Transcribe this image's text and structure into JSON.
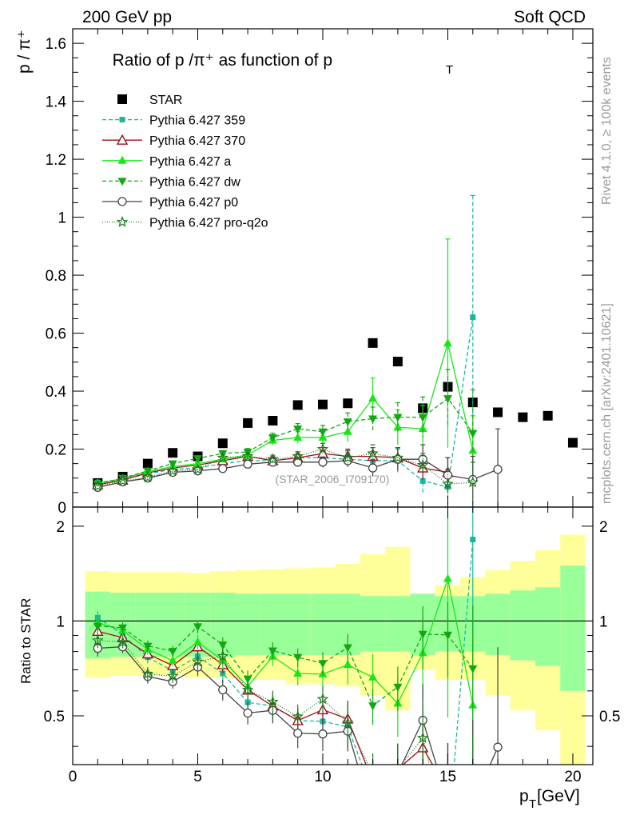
{
  "header": {
    "left": "200 GeV pp",
    "right": "Soft QCD"
  },
  "side_labels": {
    "rivet": "Rivet 4.1.0, ≥ 100k events",
    "mcplots": "mcplots.cern.ch [arXiv:2401.10621]"
  },
  "chart_data": {
    "type": "scatter",
    "title": "Ratio of p /π⁺ as function of p",
    "title_sub": "T",
    "ylabel": "p / π⁺",
    "ylabel_ratio": "Ratio to STAR",
    "xlabel": "p",
    "xlabel_sub": "T",
    "xlabel_unit": " [GeV]",
    "analysis_id": "(STAR_2006_I709170)",
    "xlim": [
      0,
      20.8
    ],
    "ylim": [
      0,
      1.65
    ],
    "ratio_ylim": [
      0.35,
      2.3
    ],
    "x_ticks": [
      0,
      5,
      10,
      15,
      20
    ],
    "x_tick_labels": [
      "0",
      "5",
      "10",
      "15",
      "20"
    ],
    "y_ticks": [
      0,
      0.2,
      0.4,
      0.6,
      0.8,
      1,
      1.2,
      1.4,
      1.6
    ],
    "y_tick_labels": [
      "0",
      "0.2",
      "0.4",
      "0.6",
      "0.8",
      "1",
      "1.2",
      "1.4",
      "1.6"
    ],
    "ratio_ticks": [
      0.5,
      1,
      2
    ],
    "ratio_tick_labels": [
      "0.5",
      "1",
      "2"
    ],
    "data": {
      "name": "STAR",
      "x": [
        1,
        2,
        3,
        4,
        5,
        6,
        7,
        8,
        9,
        10,
        11,
        12,
        13,
        14,
        15,
        16,
        17,
        18,
        19,
        20
      ],
      "y": [
        0.083,
        0.105,
        0.15,
        0.187,
        0.175,
        0.22,
        0.29,
        0.298,
        0.352,
        0.354,
        0.358,
        0.566,
        0.502,
        0.341,
        0.415,
        0.361,
        0.327,
        0.31,
        0.315,
        0.222
      ]
    },
    "bands": {
      "edges": [
        0.5,
        1.5,
        2.5,
        3.5,
        4.5,
        5.5,
        6.5,
        7.5,
        8.5,
        9.5,
        10.5,
        11.5,
        12.5,
        13.5,
        14.5,
        15.5,
        16.5,
        17.5,
        18.5,
        19.5,
        20.5
      ],
      "stat_lo": [
        0.76,
        0.77,
        0.77,
        0.77,
        0.77,
        0.77,
        0.78,
        0.78,
        0.78,
        0.78,
        0.78,
        0.8,
        0.8,
        0.78,
        0.8,
        0.8,
        0.78,
        0.75,
        0.72,
        0.6
      ],
      "stat_hi": [
        1.24,
        1.23,
        1.23,
        1.23,
        1.23,
        1.23,
        1.22,
        1.22,
        1.22,
        1.22,
        1.22,
        1.2,
        1.2,
        1.22,
        1.2,
        1.2,
        1.22,
        1.25,
        1.28,
        1.5
      ],
      "tot_lo": [
        0.66,
        0.67,
        0.67,
        0.67,
        0.66,
        0.66,
        0.65,
        0.65,
        0.63,
        0.63,
        0.62,
        0.58,
        0.52,
        0.7,
        0.65,
        0.65,
        0.58,
        0.52,
        0.45,
        0.1
      ],
      "tot_hi": [
        1.44,
        1.43,
        1.43,
        1.43,
        1.42,
        1.44,
        1.45,
        1.46,
        1.47,
        1.48,
        1.52,
        1.63,
        1.72,
        1.22,
        1.3,
        1.38,
        1.45,
        1.55,
        1.68,
        1.88
      ]
    },
    "series": [
      {
        "name": "Pythia 6.427 359",
        "color": "#16b89f",
        "dash": "5,3",
        "marker": "square-small",
        "x": [
          1,
          2,
          3,
          4,
          5,
          6,
          7,
          8,
          9,
          10,
          11,
          12,
          13,
          14,
          15,
          16
        ],
        "y": [
          0.085,
          0.095,
          0.115,
          0.13,
          0.135,
          0.15,
          0.16,
          0.16,
          0.17,
          0.17,
          0.165,
          0.16,
          0.16,
          0.09,
          0.07,
          0.655
        ],
        "err": [
          0.004,
          0.004,
          0.005,
          0.006,
          0.008,
          0.01,
          0.012,
          0.014,
          0.016,
          0.02,
          0.025,
          0.03,
          0.04,
          0.04,
          0.06,
          0.42
        ]
      },
      {
        "name": "Pythia 6.427 370",
        "color": "#a00d16",
        "dash": "",
        "marker": "triangle-open",
        "x": [
          1,
          2,
          3,
          4,
          5,
          6,
          7,
          8,
          9,
          10,
          11,
          12,
          13,
          14,
          15
        ],
        "y": [
          0.077,
          0.093,
          0.118,
          0.135,
          0.145,
          0.16,
          0.175,
          0.16,
          0.17,
          0.185,
          0.175,
          0.175,
          0.17,
          0.135,
          0.12
        ],
        "err": [
          0.004,
          0.004,
          0.005,
          0.006,
          0.008,
          0.01,
          0.012,
          0.014,
          0.016,
          0.02,
          0.025,
          0.03,
          0.035,
          0.04,
          0.05
        ]
      },
      {
        "name": "Pythia 6.427 a",
        "color": "#15e815",
        "dash": "",
        "marker": "triangle-filled",
        "x": [
          1,
          2,
          3,
          4,
          5,
          6,
          7,
          8,
          9,
          10,
          11,
          12,
          13,
          14,
          15,
          16
        ],
        "y": [
          0.082,
          0.098,
          0.122,
          0.14,
          0.15,
          0.165,
          0.18,
          0.23,
          0.24,
          0.24,
          0.26,
          0.375,
          0.275,
          0.27,
          0.565,
          0.195
        ],
        "err": [
          0.004,
          0.004,
          0.005,
          0.006,
          0.008,
          0.01,
          0.012,
          0.015,
          0.02,
          0.025,
          0.035,
          0.07,
          0.06,
          0.08,
          0.36,
          0.12
        ]
      },
      {
        "name": "Pythia 6.427 dw",
        "color": "#12a812",
        "dash": "5,3",
        "marker": "triangle-down",
        "x": [
          1,
          2,
          3,
          4,
          5,
          6,
          7,
          8,
          9,
          10,
          11,
          12,
          13,
          14,
          15,
          16
        ],
        "y": [
          0.08,
          0.1,
          0.125,
          0.15,
          0.168,
          0.185,
          0.19,
          0.24,
          0.27,
          0.26,
          0.295,
          0.305,
          0.31,
          0.31,
          0.375,
          0.255
        ],
        "err": [
          0.004,
          0.004,
          0.005,
          0.006,
          0.008,
          0.01,
          0.012,
          0.015,
          0.018,
          0.022,
          0.03,
          0.04,
          0.05,
          0.07,
          0.1,
          0.15
        ]
      },
      {
        "name": "Pythia 6.427 p0",
        "color": "#444444",
        "dash": "",
        "marker": "circle-open",
        "x": [
          1,
          2,
          3,
          4,
          5,
          6,
          7,
          8,
          9,
          10,
          11,
          12,
          13,
          14,
          15,
          16,
          17
        ],
        "y": [
          0.068,
          0.087,
          0.1,
          0.12,
          0.125,
          0.133,
          0.148,
          0.155,
          0.155,
          0.155,
          0.16,
          0.135,
          0.165,
          0.165,
          0.11,
          0.095,
          0.13
        ],
        "err": [
          0.004,
          0.004,
          0.005,
          0.006,
          0.008,
          0.01,
          0.012,
          0.014,
          0.016,
          0.018,
          0.022,
          0.03,
          0.04,
          0.05,
          0.06,
          0.08,
          0.14
        ]
      },
      {
        "name": "Pythia 6.427 pro-q2o",
        "color": "#1f7a1f",
        "dash": "1,2",
        "marker": "star-open",
        "x": [
          1,
          2,
          3,
          4,
          5,
          6,
          7,
          8,
          9,
          10,
          11,
          12,
          13,
          14,
          15,
          16
        ],
        "y": [
          0.072,
          0.09,
          0.102,
          0.125,
          0.13,
          0.17,
          0.175,
          0.165,
          0.175,
          0.2,
          0.17,
          0.185,
          0.17,
          0.145,
          0.08,
          0.085
        ],
        "err": [
          0.004,
          0.004,
          0.005,
          0.006,
          0.008,
          0.01,
          0.012,
          0.014,
          0.016,
          0.02,
          0.025,
          0.03,
          0.035,
          0.04,
          0.05,
          0.07
        ]
      }
    ]
  }
}
